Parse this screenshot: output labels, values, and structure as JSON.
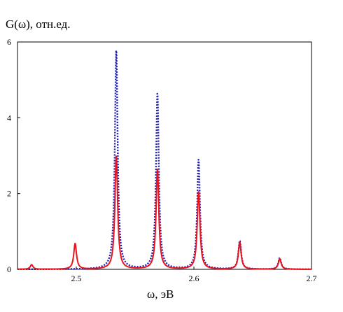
{
  "chart_data": {
    "type": "line",
    "title": "",
    "xlabel": "ω, эВ",
    "ylabel": "G(ω), отн.ед.",
    "xlim": [
      2.45,
      2.7
    ],
    "ylim": [
      0,
      6
    ],
    "xticks": [
      2.5,
      2.6,
      2.7
    ],
    "yticks": [
      0,
      2,
      4,
      6
    ],
    "xtick_labels": [
      "2.5",
      "2.6",
      "2.7"
    ],
    "ytick_labels": [
      "0",
      "2",
      "4",
      "6"
    ],
    "grid": false,
    "series": [
      {
        "style": "solid",
        "color": "#e8141e",
        "peaks": [
          {
            "x": 2.462,
            "y": 0.12
          },
          {
            "x": 2.499,
            "y": 0.68
          },
          {
            "x": 2.534,
            "y": 3.0
          },
          {
            "x": 2.569,
            "y": 2.65
          },
          {
            "x": 2.604,
            "y": 2.05
          },
          {
            "x": 2.639,
            "y": 0.72
          },
          {
            "x": 2.673,
            "y": 0.28
          }
        ]
      },
      {
        "style": "dotted",
        "color": "#1e1eb4",
        "peaks": [
          {
            "x": 2.534,
            "y": 5.8
          },
          {
            "x": 2.569,
            "y": 4.65
          },
          {
            "x": 2.604,
            "y": 2.9
          },
          {
            "x": 2.639,
            "y": 0.75
          },
          {
            "x": 2.673,
            "y": 0.3
          }
        ]
      }
    ]
  }
}
